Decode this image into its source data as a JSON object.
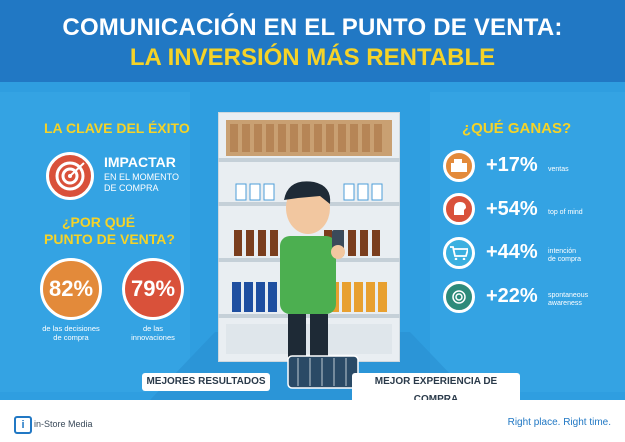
{
  "header": {
    "title_line1": "COMUNICACIÓN EN EL PUNTO DE VENTA:",
    "title_line2": "LA INVERSIÓN MÁS RENTABLE"
  },
  "left": {
    "key_heading": "LA CLAVE DEL ÉXITO",
    "impact_title": "IMPACTAR",
    "impact_sub1": "EN EL MOMENTO",
    "impact_sub2": "DE COMPRA",
    "why_line1": "¿POR QUÉ",
    "why_line2": "PUNTO DE VENTA?",
    "stat1": {
      "value": "82%",
      "label1": "de las decisiones",
      "label2": "de compra",
      "color": "#e38a3a"
    },
    "stat2": {
      "value": "79%",
      "label1": "de las",
      "label2": "innovaciones",
      "color": "#d9513a"
    }
  },
  "right": {
    "heading": "¿QUÉ GANAS?",
    "items": [
      {
        "value": "+17%",
        "label1": "ventas",
        "label2": "",
        "icon": "cash-register-icon",
        "color": "#e38a3a"
      },
      {
        "value": "+54%",
        "label1": "top of mind",
        "label2": "",
        "icon": "head-brain-icon",
        "color": "#d9513a"
      },
      {
        "value": "+44%",
        "label1": "intención",
        "label2": "de compra",
        "icon": "shopping-cart-icon",
        "color": "#3ab0e0"
      },
      {
        "value": "+22%",
        "label1": "spontaneous",
        "label2": "awareness",
        "icon": "fingerprint-icon",
        "color": "#2e8a7a"
      }
    ]
  },
  "bottom": {
    "left_pill": "MEJORES RESULTADOS",
    "right_pill": "MEJOR EXPERIENCIA DE COMPRA"
  },
  "footer": {
    "brand": "in-Store Media",
    "tagline": "Right place. Right time."
  }
}
